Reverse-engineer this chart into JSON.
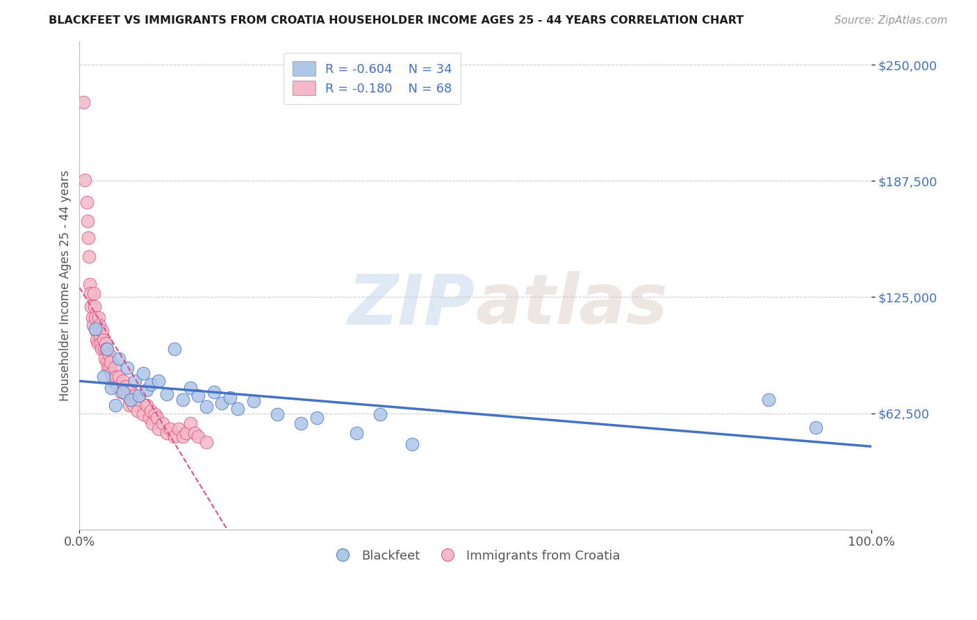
{
  "title": "BLACKFEET VS IMMIGRANTS FROM CROATIA HOUSEHOLDER INCOME AGES 25 - 44 YEARS CORRELATION CHART",
  "source": "Source: ZipAtlas.com",
  "ylabel": "Householder Income Ages 25 - 44 years",
  "xlim": [
    0,
    1.0
  ],
  "ylim": [
    0,
    262500
  ],
  "xtick_labels": [
    "0.0%",
    "100.0%"
  ],
  "ytick_labels": [
    "$62,500",
    "$125,000",
    "$187,500",
    "$250,000"
  ],
  "ytick_values": [
    62500,
    125000,
    187500,
    250000
  ],
  "legend_r1": "R = -0.604",
  "legend_n1": "N = 34",
  "legend_r2": "R = -0.180",
  "legend_n2": "N = 68",
  "color_blue": "#aec6e8",
  "color_pink": "#f4b8c8",
  "line_blue": "#4472C4",
  "line_pink": "#e05080",
  "watermark_zip": "ZIP",
  "watermark_atlas": "atlas",
  "background": "#ffffff",
  "grid_color": "#cccccc",
  "blackfeet_x": [
    0.02,
    0.03,
    0.035,
    0.04,
    0.045,
    0.05,
    0.055,
    0.06,
    0.065,
    0.07,
    0.075,
    0.08,
    0.085,
    0.09,
    0.1,
    0.11,
    0.12,
    0.13,
    0.14,
    0.15,
    0.16,
    0.17,
    0.18,
    0.19,
    0.2,
    0.22,
    0.25,
    0.28,
    0.3,
    0.35,
    0.38,
    0.42,
    0.87,
    0.93
  ],
  "blackfeet_y": [
    108000,
    82000,
    97000,
    76000,
    67000,
    92000,
    74000,
    87000,
    70000,
    80000,
    72000,
    84000,
    75000,
    78000,
    80000,
    73000,
    97000,
    70000,
    76000,
    72000,
    66000,
    74000,
    68000,
    71000,
    65000,
    69000,
    62000,
    57000,
    60000,
    52000,
    62000,
    46000,
    70000,
    55000
  ],
  "croatia_x": [
    0.005,
    0.007,
    0.009,
    0.01,
    0.011,
    0.012,
    0.013,
    0.014,
    0.015,
    0.016,
    0.017,
    0.018,
    0.019,
    0.02,
    0.021,
    0.022,
    0.023,
    0.024,
    0.025,
    0.026,
    0.027,
    0.028,
    0.029,
    0.03,
    0.031,
    0.032,
    0.033,
    0.034,
    0.035,
    0.036,
    0.037,
    0.038,
    0.039,
    0.04,
    0.042,
    0.044,
    0.046,
    0.048,
    0.05,
    0.052,
    0.055,
    0.058,
    0.06,
    0.063,
    0.065,
    0.068,
    0.07,
    0.073,
    0.075,
    0.08,
    0.085,
    0.088,
    0.09,
    0.092,
    0.095,
    0.098,
    0.1,
    0.105,
    0.11,
    0.115,
    0.12,
    0.125,
    0.13,
    0.135,
    0.14,
    0.145,
    0.15,
    0.16
  ],
  "croatia_y": [
    230000,
    188000,
    176000,
    166000,
    157000,
    147000,
    132000,
    127000,
    120000,
    114000,
    110000,
    127000,
    120000,
    114000,
    107000,
    102000,
    100000,
    114000,
    110000,
    104000,
    100000,
    97000,
    107000,
    102000,
    97000,
    92000,
    100000,
    97000,
    90000,
    87000,
    94000,
    87000,
    90000,
    84000,
    80000,
    87000,
    82000,
    77000,
    82000,
    74000,
    80000,
    77000,
    72000,
    67000,
    74000,
    67000,
    72000,
    64000,
    70000,
    62000,
    67000,
    60000,
    64000,
    57000,
    62000,
    60000,
    54000,
    57000,
    52000,
    54000,
    50000,
    54000,
    50000,
    52000,
    57000,
    52000,
    50000,
    47000
  ]
}
